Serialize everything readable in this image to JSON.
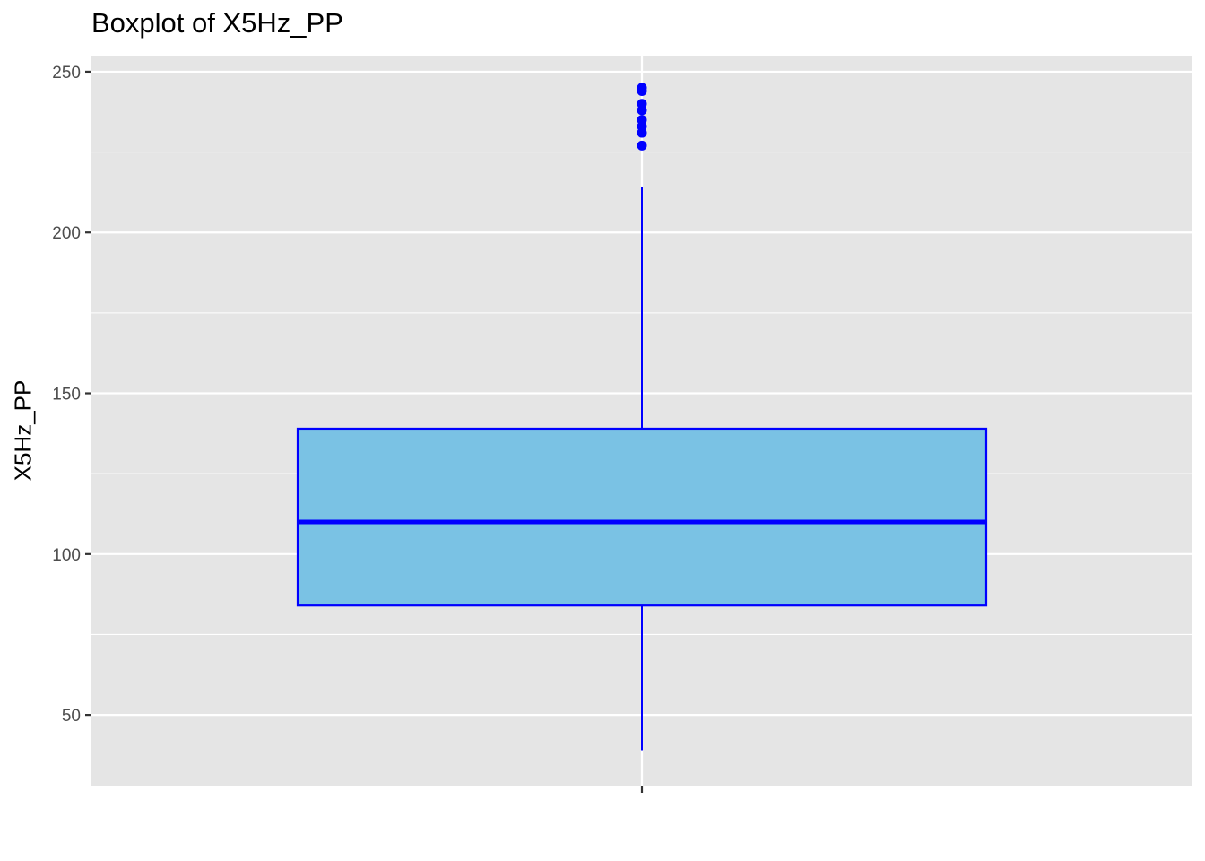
{
  "chart_data": {
    "type": "boxplot",
    "title": "Boxplot of X5Hz_PP",
    "xlabel": "",
    "ylabel": "X5Hz_PP",
    "ylim": [
      28,
      255
    ],
    "y_ticks": [
      50,
      100,
      150,
      200,
      250
    ],
    "grid": true,
    "colors": {
      "panel": "#e5e5e5",
      "grid": "#ffffff",
      "box_fill": "#7ac2e4",
      "box_stroke": "#0000ff",
      "outlier": "#0000ff"
    },
    "box": {
      "whisker_low": 39,
      "q1": 84,
      "median": 110,
      "q3": 139,
      "whisker_high": 214
    },
    "outliers": [
      227,
      231,
      233,
      235,
      238,
      240,
      244,
      245
    ]
  }
}
